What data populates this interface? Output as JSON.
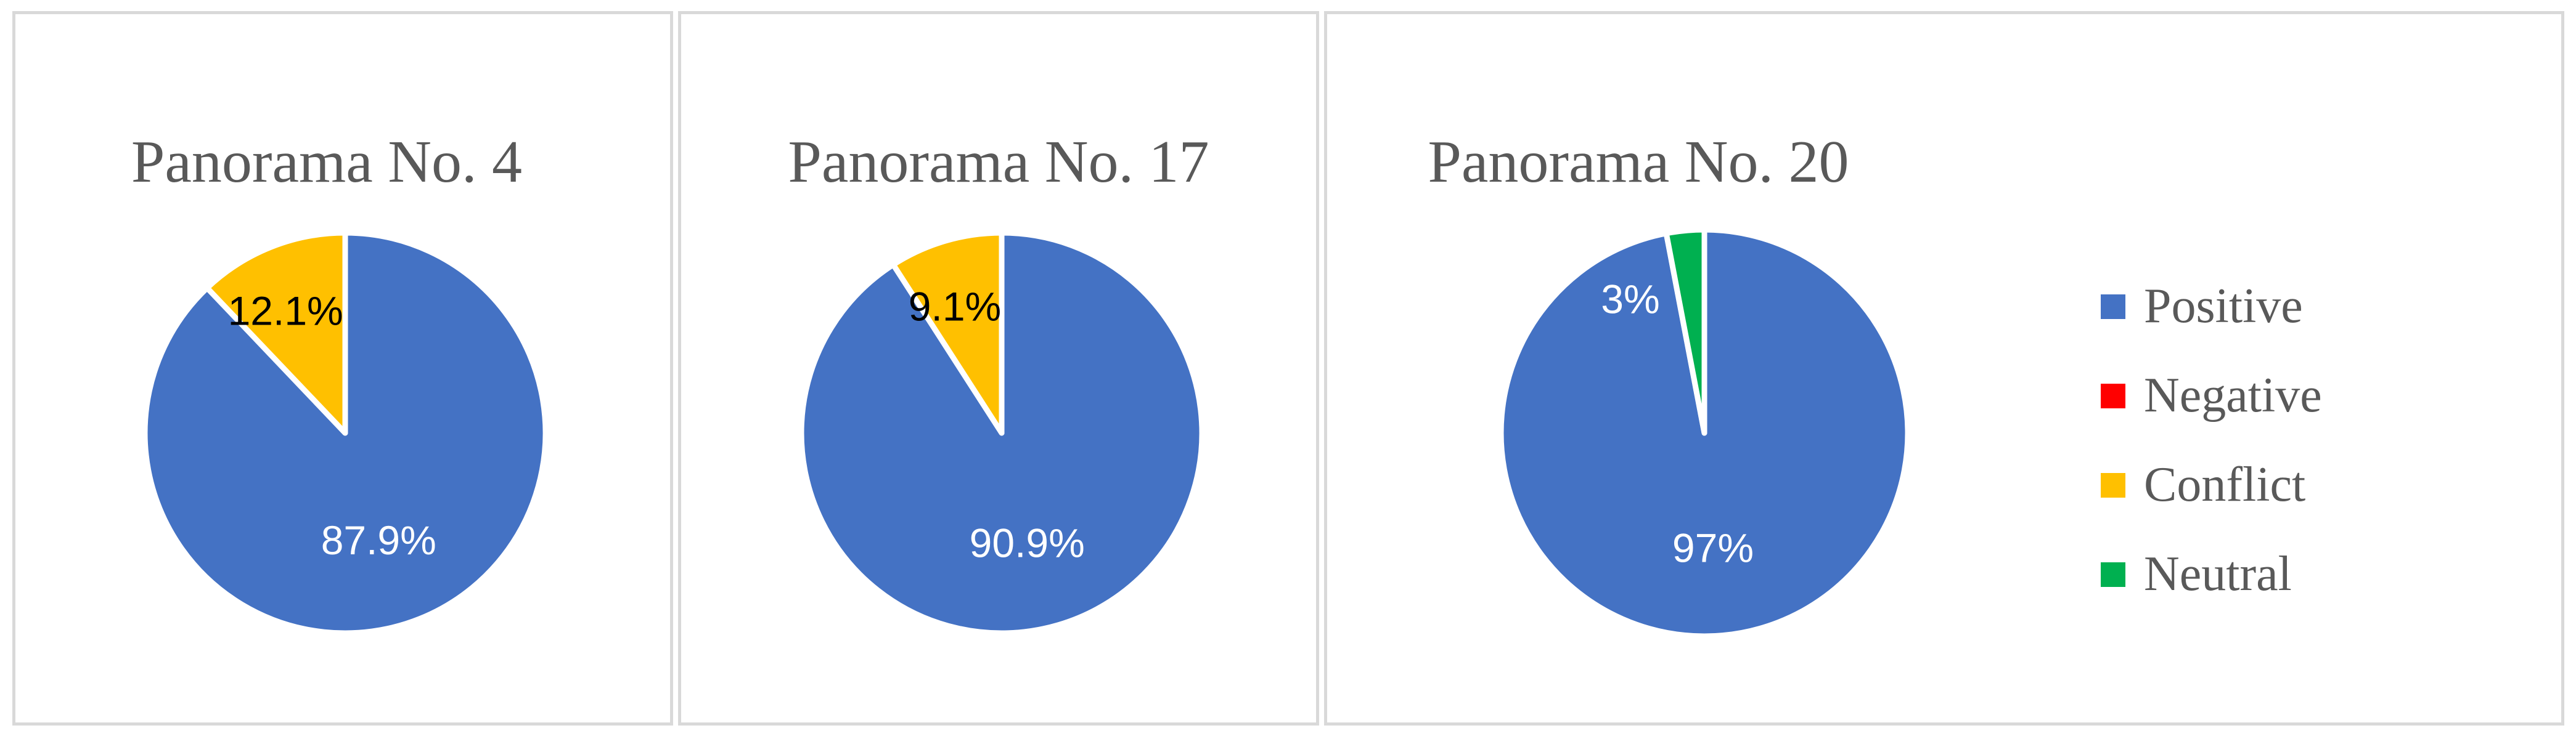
{
  "legend": {
    "items": [
      {
        "label": "Positive",
        "color": "#4472C4"
      },
      {
        "label": "Negative",
        "color": "#FF0000"
      },
      {
        "label": "Conflict",
        "color": "#FFC000"
      },
      {
        "label": "Neutral",
        "color": "#00B050"
      }
    ]
  },
  "chart_data": [
    {
      "type": "pie",
      "title": "Panorama No. 4",
      "categories": [
        "Positive",
        "Negative",
        "Conflict",
        "Neutral"
      ],
      "values": [
        87.9,
        0,
        12.1,
        0
      ],
      "data_labels": [
        "87.9%",
        "",
        "12.1%",
        ""
      ]
    },
    {
      "type": "pie",
      "title": "Panorama No. 17",
      "categories": [
        "Positive",
        "Negative",
        "Conflict",
        "Neutral"
      ],
      "values": [
        90.9,
        0,
        9.1,
        0
      ],
      "data_labels": [
        "90.9%",
        "",
        "9.1%",
        ""
      ]
    },
    {
      "type": "pie",
      "title": "Panorama No. 20",
      "categories": [
        "Positive",
        "Negative",
        "Conflict",
        "Neutral"
      ],
      "values": [
        97,
        0,
        0,
        3
      ],
      "data_labels": [
        "97%",
        "",
        "",
        "3%"
      ]
    }
  ]
}
